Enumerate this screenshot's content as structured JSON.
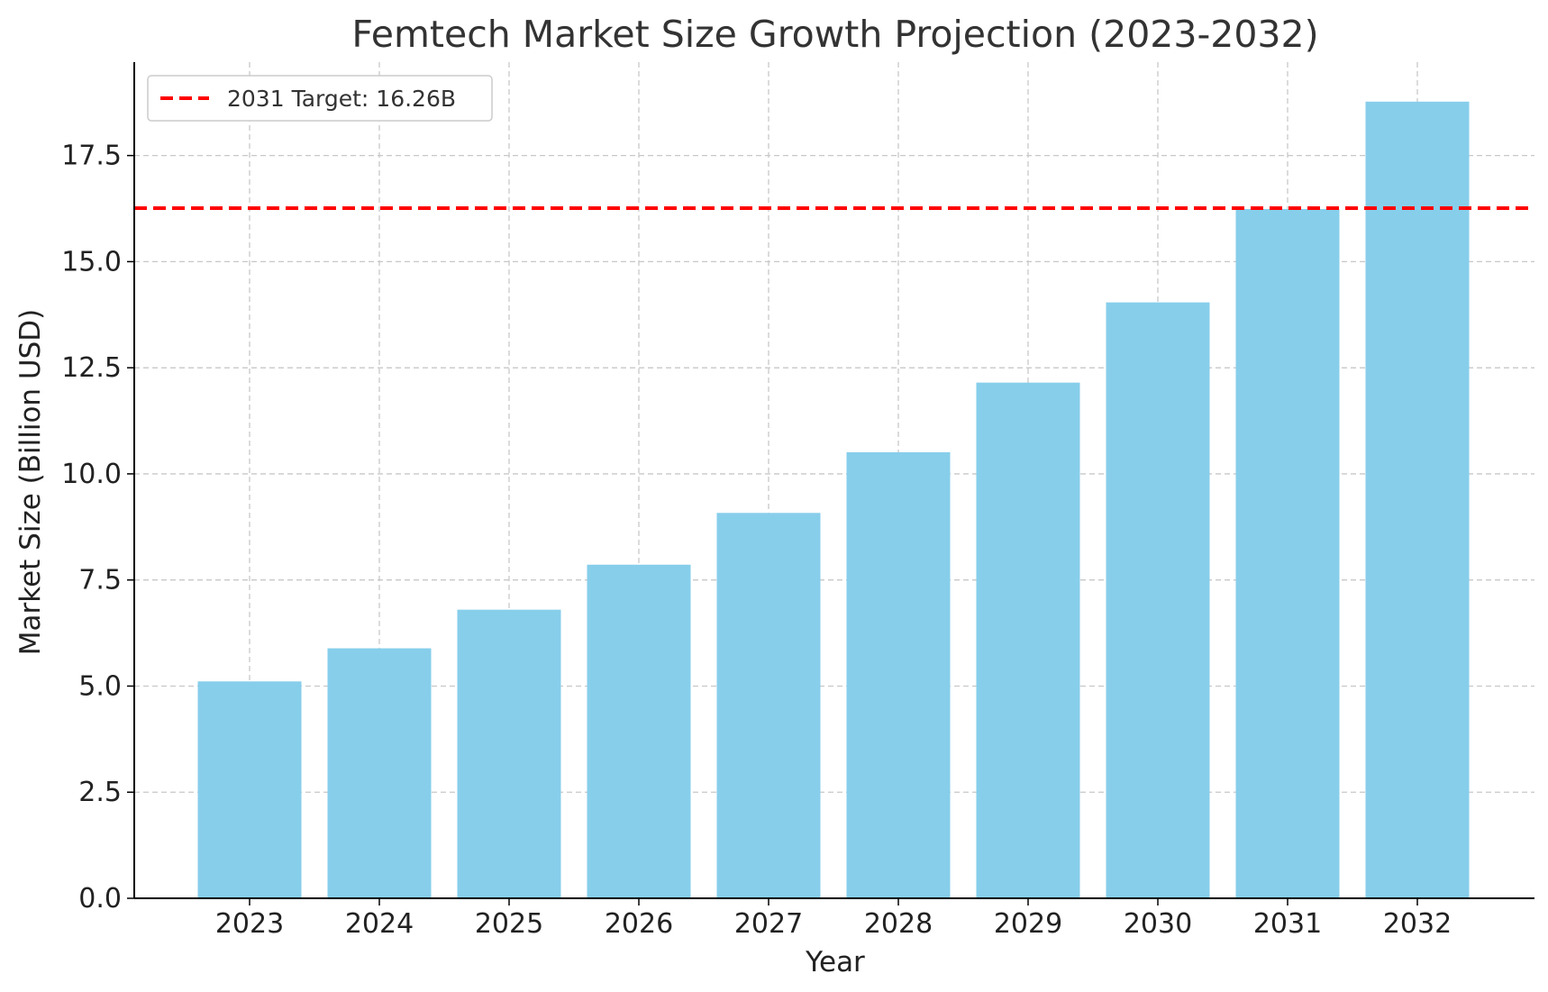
{
  "chart_data": {
    "type": "bar",
    "title": "Femtech Market Size Growth Projection (2023-2032)",
    "xlabel": "Year",
    "ylabel": "Market Size (Billion USD)",
    "categories": [
      "2023",
      "2024",
      "2025",
      "2026",
      "2027",
      "2028",
      "2029",
      "2030",
      "2031",
      "2032"
    ],
    "values": [
      5.11,
      5.89,
      6.8,
      7.86,
      9.08,
      10.51,
      12.15,
      14.04,
      16.24,
      18.77
    ],
    "ylim": [
      0,
      19.7
    ],
    "yticks": [
      "0.0",
      "2.5",
      "5.0",
      "7.5",
      "10.0",
      "12.5",
      "15.0",
      "17.5"
    ],
    "ytick_values": [
      0,
      2.5,
      5,
      7.5,
      10,
      12.5,
      15,
      17.5
    ],
    "grid": true,
    "bar_color": "#87CEEB",
    "reference_line": {
      "value": 16.26,
      "label": "2031 Target: 16.26B",
      "color": "#FF0000",
      "style": "dashed"
    },
    "legend_position": "top-left"
  }
}
